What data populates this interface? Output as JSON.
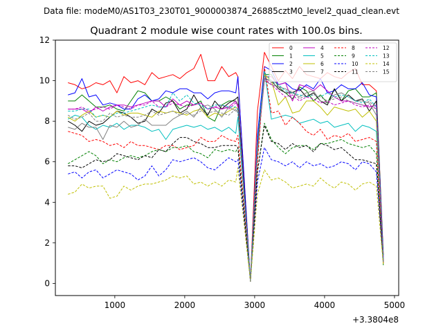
{
  "chart_data": {
    "type": "line",
    "suptitle": "Data file: modeM0/AS1T03_230T01_9000003874_26885cztM0_level2_quad_clean.evt",
    "title": "Quadrant 2 module wise count rates with 100.0s bins.",
    "xlabel": "",
    "ylabel": "",
    "x_offset_label": "+3.3804e8",
    "xlim": [
      150,
      5060
    ],
    "ylim": [
      -0.6,
      12
    ],
    "xticks": [
      1000,
      2000,
      3000,
      4000,
      5000
    ],
    "xtick_labels": [
      "1000",
      "2000",
      "3000",
      "4000",
      "5000"
    ],
    "yticks": [
      0,
      2,
      4,
      6,
      8,
      10,
      12
    ],
    "ytick_labels": [
      "0",
      "2",
      "4",
      "6",
      "8",
      "10",
      "12"
    ],
    "grid": false,
    "legend_position": "top-right",
    "x": [
      330,
      430,
      530,
      630,
      730,
      830,
      930,
      1030,
      1130,
      1230,
      1330,
      1430,
      1530,
      1630,
      1730,
      1830,
      1930,
      2030,
      2130,
      2230,
      2330,
      2430,
      2530,
      2630,
      2730,
      2760,
      2940,
      3040,
      3140,
      3240,
      3340,
      3440,
      3540,
      3640,
      3740,
      3840,
      3940,
      4040,
      4140,
      4240,
      4340,
      4440,
      4540,
      4640,
      4740,
      4840
    ],
    "series": [
      {
        "name": "0",
        "color": "#ff0000",
        "dash": "solid",
        "values": [
          9.9,
          9.8,
          9.6,
          9.7,
          9.9,
          9.8,
          10.0,
          9.4,
          10.2,
          9.9,
          10.0,
          9.8,
          10.4,
          10.1,
          10.2,
          10.3,
          10.1,
          10.4,
          10.6,
          11.3,
          10.0,
          10.0,
          10.7,
          10.2,
          10.4,
          10.2,
          0.1,
          8.5,
          11.4,
          10.7,
          10.0,
          10.5,
          10.1,
          10.7,
          10.3,
          10.2,
          10.1,
          10.4,
          10.2,
          10.1,
          10.4,
          10.6,
          9.8,
          9.8,
          9.5,
          1.4
        ]
      },
      {
        "name": "1",
        "color": "#008000",
        "dash": "solid",
        "values": [
          9.0,
          9.0,
          9.3,
          9.0,
          8.7,
          8.7,
          8.8,
          8.6,
          8.5,
          9.0,
          9.5,
          9.4,
          9.0,
          9.0,
          9.2,
          9.0,
          8.6,
          8.8,
          8.8,
          9.0,
          8.2,
          8.0,
          8.8,
          9.0,
          9.0,
          8.8,
          0.1,
          7.0,
          10.3,
          10.3,
          9.7,
          9.4,
          9.1,
          9.7,
          9.5,
          9.0,
          9.3,
          8.9,
          9.6,
          9.0,
          9.5,
          9.6,
          9.2,
          9.2,
          9.4,
          1.4
        ]
      },
      {
        "name": "2",
        "color": "#0000ff",
        "dash": "solid",
        "values": [
          9.3,
          9.4,
          10.1,
          9.2,
          9.3,
          8.8,
          8.9,
          8.8,
          8.6,
          8.6,
          9.1,
          9.3,
          9.0,
          9.1,
          9.5,
          9.4,
          9.6,
          9.6,
          9.4,
          9.4,
          9.1,
          9.4,
          9.5,
          9.5,
          9.4,
          10.2,
          0.1,
          7.3,
          10.7,
          10.5,
          9.8,
          9.9,
          9.6,
          9.5,
          9.8,
          9.6,
          10.1,
          9.4,
          9.5,
          9.8,
          9.6,
          9.6,
          9.9,
          9.3,
          9.2,
          1.3
        ]
      },
      {
        "name": "3",
        "color": "#000000",
        "dash": "solid",
        "values": [
          8.0,
          7.8,
          7.5,
          8.0,
          7.8,
          7.9,
          8.2,
          8.5,
          8.4,
          8.2,
          7.9,
          8.0,
          8.6,
          8.4,
          8.9,
          9.0,
          8.4,
          8.6,
          9.3,
          8.7,
          8.3,
          9.0,
          8.6,
          8.9,
          9.1,
          9.2,
          0.1,
          6.7,
          10.1,
          10.0,
          9.6,
          9.4,
          9.4,
          9.6,
          9.2,
          9.4,
          9.0,
          8.8,
          9.6,
          9.0,
          9.3,
          9.0,
          9.1,
          8.5,
          9.0,
          1.1
        ]
      },
      {
        "name": "4",
        "color": "#bf00bf",
        "dash": "solid",
        "values": [
          8.6,
          8.6,
          8.6,
          8.4,
          8.7,
          8.5,
          8.7,
          8.8,
          8.8,
          8.7,
          8.8,
          8.9,
          9.0,
          9.0,
          8.7,
          9.1,
          8.8,
          9.0,
          8.8,
          8.9,
          8.6,
          8.7,
          8.6,
          8.7,
          9.0,
          8.7,
          0.1,
          6.8,
          10.2,
          10.2,
          9.8,
          9.9,
          9.0,
          9.8,
          9.7,
          9.5,
          9.8,
          9.5,
          9.2,
          9.0,
          9.0,
          8.9,
          8.8,
          8.7,
          8.8,
          1.2
        ]
      },
      {
        "name": "5",
        "color": "#00bfbf",
        "dash": "solid",
        "values": [
          8.1,
          8.3,
          8.2,
          7.8,
          7.6,
          7.8,
          7.7,
          7.9,
          7.6,
          7.8,
          7.8,
          7.7,
          7.5,
          7.6,
          7.1,
          7.6,
          7.7,
          7.8,
          7.7,
          7.8,
          7.6,
          7.7,
          7.5,
          7.7,
          7.4,
          8.2,
          0.1,
          6.2,
          10.5,
          8.1,
          8.2,
          8.3,
          8.2,
          7.9,
          8.0,
          8.1,
          7.9,
          8.0,
          7.7,
          7.8,
          7.9,
          7.5,
          7.8,
          7.7,
          7.5,
          1.2
        ]
      },
      {
        "name": "6",
        "color": "#bfbf00",
        "dash": "solid",
        "values": [
          8.2,
          8.0,
          8.3,
          8.5,
          8.2,
          8.3,
          8.2,
          8.5,
          8.3,
          8.4,
          8.4,
          8.3,
          8.2,
          8.5,
          8.4,
          8.5,
          8.4,
          8.3,
          8.5,
          8.6,
          8.2,
          8.4,
          8.3,
          8.5,
          8.7,
          8.6,
          0.1,
          6.5,
          10.3,
          10.0,
          8.8,
          9.2,
          8.4,
          8.5,
          9.0,
          9.0,
          8.7,
          8.3,
          8.7,
          8.6,
          8.5,
          8.6,
          8.2,
          8.5,
          8.0,
          1.1
        ]
      },
      {
        "name": "7",
        "color": "#808080",
        "dash": "solid",
        "values": [
          7.7,
          7.6,
          7.9,
          7.7,
          7.7,
          7.1,
          7.8,
          7.7,
          8.0,
          7.7,
          7.8,
          8.1,
          7.8,
          7.8,
          7.8,
          8.1,
          8.3,
          8.5,
          8.2,
          8.7,
          8.8,
          8.6,
          8.2,
          8.7,
          8.5,
          8.6,
          0.1,
          6.6,
          10.0,
          9.8,
          9.7,
          9.6,
          9.4,
          9.2,
          9.4,
          9.5,
          9.0,
          8.9,
          9.3,
          9.4,
          9.2,
          9.0,
          9.0,
          8.9,
          8.3,
          1.0
        ]
      },
      {
        "name": "8",
        "color": "#ff0000",
        "dash": "dashed",
        "values": [
          7.5,
          7.4,
          7.3,
          7.0,
          7.1,
          7.0,
          6.8,
          6.9,
          6.7,
          7.0,
          6.8,
          6.8,
          6.7,
          6.6,
          6.8,
          6.8,
          6.6,
          6.7,
          6.8,
          7.2,
          7.0,
          7.0,
          7.3,
          7.1,
          7.0,
          7.3,
          0.1,
          5.9,
          10.7,
          8.4,
          8.5,
          7.8,
          8.2,
          7.9,
          7.5,
          7.3,
          7.6,
          7.1,
          7.3,
          7.2,
          7.4,
          7.0,
          7.1,
          7.2,
          7.0,
          1.0
        ]
      },
      {
        "name": "9",
        "color": "#008000",
        "dash": "dashed",
        "values": [
          5.9,
          6.1,
          6.3,
          6.5,
          6.3,
          5.9,
          6.1,
          6.0,
          6.2,
          6.3,
          6.2,
          6.3,
          6.5,
          6.6,
          6.5,
          6.7,
          6.7,
          6.8,
          6.5,
          6.4,
          6.2,
          6.6,
          6.5,
          6.6,
          6.5,
          6.7,
          0.1,
          5.5,
          7.9,
          7.1,
          6.7,
          6.4,
          6.7,
          6.8,
          6.8,
          6.6,
          6.9,
          6.9,
          7.0,
          7.1,
          6.9,
          6.8,
          6.7,
          6.8,
          6.4,
          0.9
        ]
      },
      {
        "name": "10",
        "color": "#0000ff",
        "dash": "dashed",
        "values": [
          5.4,
          5.5,
          5.2,
          5.5,
          5.6,
          5.2,
          5.4,
          5.6,
          5.5,
          5.4,
          5.1,
          5.3,
          5.8,
          5.3,
          5.6,
          6.1,
          6.0,
          6.1,
          6.2,
          6.0,
          5.7,
          5.6,
          5.9,
          6.2,
          6.0,
          6.1,
          0.1,
          5.0,
          6.7,
          6.1,
          6.0,
          5.8,
          6.0,
          5.7,
          6.0,
          5.8,
          5.9,
          5.7,
          5.8,
          6.0,
          5.9,
          5.6,
          6.0,
          5.9,
          5.5,
          1.1
        ]
      },
      {
        "name": "11",
        "color": "#000000",
        "dash": "dashed",
        "values": [
          5.8,
          5.8,
          5.7,
          5.9,
          6.1,
          6.0,
          6.1,
          6.4,
          6.3,
          6.2,
          6.1,
          6.3,
          6.2,
          6.6,
          6.5,
          6.9,
          7.2,
          7.2,
          7.0,
          6.9,
          6.7,
          6.7,
          6.8,
          6.8,
          6.8,
          6.7,
          0.1,
          5.5,
          7.8,
          7.0,
          6.9,
          6.6,
          6.9,
          6.7,
          6.8,
          6.5,
          6.9,
          6.8,
          6.6,
          6.7,
          6.4,
          6.1,
          6.1,
          6.0,
          5.9,
          1.0
        ]
      },
      {
        "name": "12",
        "color": "#bf00bf",
        "dash": "dashed",
        "values": [
          8.6,
          8.6,
          8.7,
          8.5,
          8.6,
          8.7,
          8.6,
          8.8,
          8.7,
          8.6,
          8.8,
          8.8,
          9.0,
          8.7,
          8.7,
          8.9,
          8.8,
          8.7,
          8.8,
          8.9,
          8.6,
          8.7,
          8.8,
          8.6,
          8.9,
          8.8,
          0.1,
          6.8,
          10.1,
          9.8,
          9.5,
          9.2,
          9.3,
          9.0,
          9.2,
          9.1,
          8.9,
          9.0,
          8.8,
          8.9,
          9.0,
          8.8,
          8.7,
          8.8,
          8.6,
          1.1
        ]
      },
      {
        "name": "13",
        "color": "#00bfbf",
        "dash": "dashed",
        "values": [
          8.5,
          8.5,
          8.6,
          8.6,
          8.2,
          8.3,
          8.2,
          8.4,
          8.4,
          8.5,
          8.6,
          8.7,
          8.8,
          8.7,
          8.7,
          9.4,
          9.0,
          9.3,
          8.9,
          8.8,
          8.6,
          8.8,
          8.8,
          8.7,
          8.7,
          8.6,
          0.1,
          6.9,
          10.4,
          10.0,
          9.8,
          9.5,
          9.4,
          9.3,
          9.2,
          9.3,
          9.2,
          9.4,
          9.2,
          9.3,
          9.2,
          9.0,
          8.9,
          9.1,
          8.7,
          1.1
        ]
      },
      {
        "name": "14",
        "color": "#bfbf00",
        "dash": "dashed",
        "values": [
          4.4,
          4.5,
          4.9,
          4.7,
          4.8,
          4.8,
          4.2,
          4.3,
          4.8,
          4.6,
          4.8,
          4.9,
          4.9,
          5.0,
          5.1,
          5.3,
          5.2,
          5.3,
          4.9,
          5.0,
          4.8,
          5.0,
          4.8,
          5.1,
          5.0,
          5.7,
          0.1,
          4.4,
          5.6,
          5.1,
          5.2,
          5.0,
          4.7,
          4.8,
          4.9,
          4.8,
          5.2,
          4.9,
          4.7,
          5.0,
          4.9,
          4.6,
          4.9,
          5.0,
          4.8,
          0.9
        ]
      },
      {
        "name": "15",
        "color": "#808080",
        "dash": "dashed",
        "values": [
          8.3,
          8.1,
          8.2,
          8.4,
          8.0,
          8.0,
          8.4,
          8.2,
          8.3,
          8.2,
          8.2,
          8.3,
          8.5,
          8.3,
          8.4,
          8.5,
          8.3,
          8.4,
          8.3,
          8.5,
          8.4,
          8.5,
          8.4,
          8.3,
          8.6,
          8.4,
          0.1,
          6.6,
          10.2,
          9.9,
          9.7,
          9.4,
          9.5,
          9.1,
          9.3,
          9.3,
          9.2,
          9.0,
          9.1,
          9.2,
          9.0,
          8.9,
          8.8,
          9.0,
          8.6,
          1.0
        ]
      }
    ]
  }
}
